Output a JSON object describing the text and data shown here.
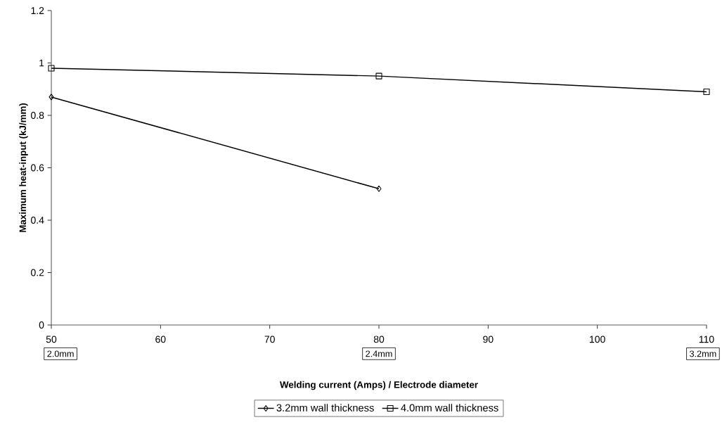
{
  "chart_data": {
    "type": "line",
    "xlabel": "Welding current (Amps) / Electrode diameter",
    "ylabel": "Maximum heat-input (kJ/mm)",
    "xlim": [
      50,
      110
    ],
    "xticks": [
      50,
      60,
      70,
      80,
      90,
      100,
      110
    ],
    "ylim": [
      0,
      1.2
    ],
    "yticks": [
      0,
      0.2,
      0.4,
      0.6,
      0.8,
      1,
      1.2
    ],
    "grid": false,
    "legend": "bottom",
    "series": [
      {
        "name": "3.2mm wall thickness",
        "color": "#000000",
        "marker": "diamond",
        "x": [
          50,
          80
        ],
        "values": [
          0.87,
          0.52
        ]
      },
      {
        "name": "4.0mm wall thickness",
        "color": "#000000",
        "marker": "square",
        "x": [
          50,
          80,
          110
        ],
        "values": [
          0.98,
          0.95,
          0.89
        ]
      }
    ],
    "annotations": [
      "2.0mm",
      "2.4mm",
      "3.2mm"
    ]
  }
}
